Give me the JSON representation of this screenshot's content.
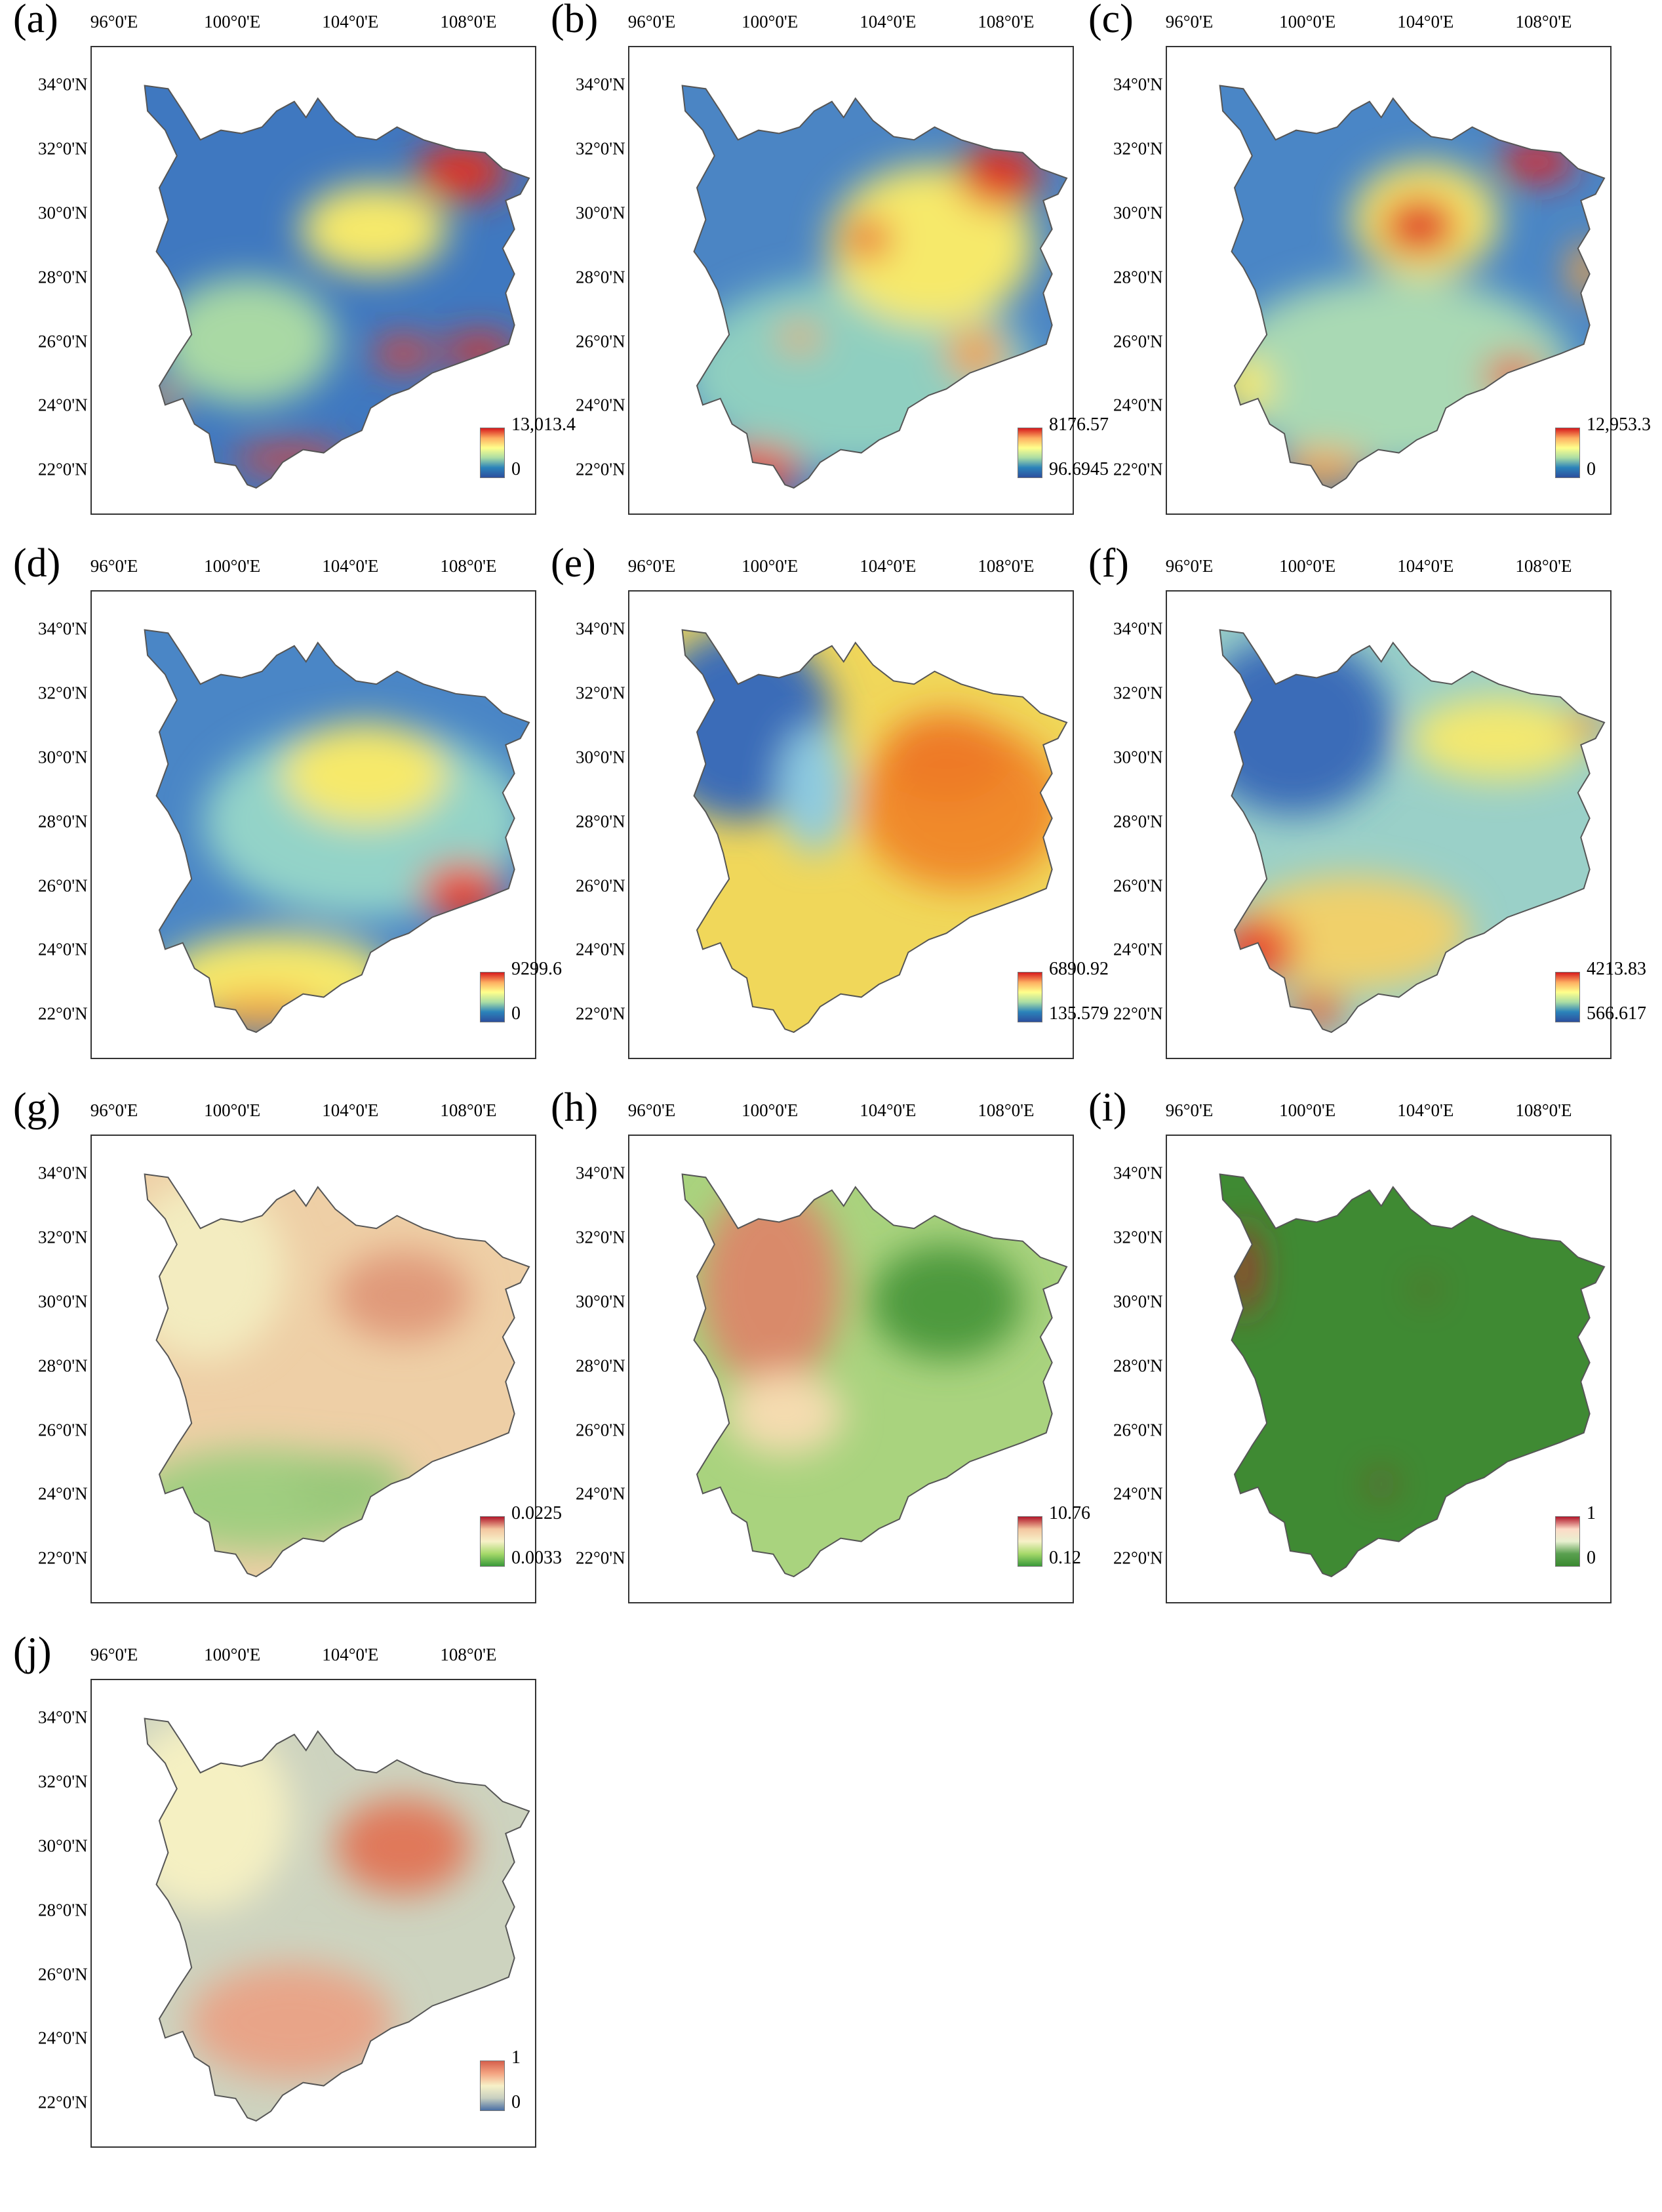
{
  "axes": {
    "x_ticks": [
      "96°0'E",
      "100°0'E",
      "104°0'E",
      "108°0'E"
    ],
    "y_ticks": [
      "34°0'N",
      "32°0'N",
      "30°0'N",
      "28°0'N",
      "26°0'N",
      "24°0'N",
      "22°0'N"
    ]
  },
  "colormaps": {
    "spectral": [
      "#d7191c",
      "#fdae61",
      "#ffff8c",
      "#abdda4",
      "#2b83ba",
      "#2c4f9e"
    ],
    "red_green": [
      "#b2182b",
      "#f4c7a1",
      "#f7f1c8",
      "#a6d96a",
      "#3a9a3a"
    ],
    "binary": [
      "#b2182b",
      "#fddbc7",
      "#e8f0d0",
      "#5aa050",
      "#3a8a30"
    ],
    "red_blue": [
      "#d6604d",
      "#f4a582",
      "#f7f1c8",
      "#c8d0c0",
      "#4a6fa5"
    ]
  },
  "panels": [
    {
      "id": "a",
      "label": "(a)",
      "legend_max": "13,013.4",
      "legend_min": "0",
      "cmap": "spectral",
      "base": "#3f78c0",
      "blobs": [
        {
          "c": "#e03020",
          "lon": 107.8,
          "lat": 31.3,
          "rx": 1.6,
          "ry": 0.9
        },
        {
          "c": "#e8402a",
          "lon": 105.8,
          "lat": 25.6,
          "rx": 1.0,
          "ry": 0.5
        },
        {
          "c": "#e03020",
          "lon": 108.4,
          "lat": 25.7,
          "rx": 1.3,
          "ry": 0.5
        },
        {
          "c": "#e8402a",
          "lon": 102.0,
          "lat": 22.3,
          "rx": 2.0,
          "ry": 0.4
        },
        {
          "c": "#f3a040",
          "lon": 97.5,
          "lat": 24.1,
          "rx": 0.6,
          "ry": 0.5
        },
        {
          "c": "#f6e96a",
          "lon": 104.8,
          "lat": 29.5,
          "rx": 2.5,
          "ry": 1.4
        },
        {
          "c": "#a9d9a4",
          "lon": 100.5,
          "lat": 26.0,
          "rx": 3.0,
          "ry": 2.0
        }
      ]
    },
    {
      "id": "b",
      "label": "(b)",
      "legend_max": "8176.57",
      "legend_min": "96.6945",
      "cmap": "spectral",
      "base": "#4b85c4",
      "blobs": [
        {
          "c": "#8fcfc0",
          "lon": 103.0,
          "lat": 25.0,
          "rx": 6.0,
          "ry": 3.0
        },
        {
          "c": "#f6e96a",
          "lon": 105.5,
          "lat": 29.0,
          "rx": 3.5,
          "ry": 2.5
        },
        {
          "c": "#e03020",
          "lon": 107.8,
          "lat": 31.2,
          "rx": 1.4,
          "ry": 1.0
        },
        {
          "c": "#e8402a",
          "lon": 103.3,
          "lat": 29.2,
          "rx": 0.8,
          "ry": 0.6
        },
        {
          "c": "#f3a040",
          "lon": 107.0,
          "lat": 25.6,
          "rx": 1.0,
          "ry": 0.8
        },
        {
          "c": "#f3a040",
          "lon": 101.0,
          "lat": 26.1,
          "rx": 0.7,
          "ry": 0.4
        },
        {
          "c": "#e8402a",
          "lon": 99.5,
          "lat": 22.0,
          "rx": 1.6,
          "ry": 0.7
        }
      ]
    },
    {
      "id": "c",
      "label": "(c)",
      "legend_max": "12,953.3",
      "legend_min": "0",
      "cmap": "spectral",
      "base": "#4a86c6",
      "blobs": [
        {
          "c": "#a9d9b4",
          "lon": 103.0,
          "lat": 25.0,
          "rx": 6.0,
          "ry": 3.0
        },
        {
          "c": "#f6e96a",
          "lon": 104.0,
          "lat": 29.8,
          "rx": 2.5,
          "ry": 1.8
        },
        {
          "c": "#e02020",
          "lon": 103.8,
          "lat": 29.6,
          "rx": 1.3,
          "ry": 0.9
        },
        {
          "c": "#e02020",
          "lon": 107.8,
          "lat": 31.6,
          "rx": 1.3,
          "ry": 0.6
        },
        {
          "c": "#e8502a",
          "lon": 107.0,
          "lat": 24.9,
          "rx": 1.0,
          "ry": 0.6
        },
        {
          "c": "#f3a040",
          "lon": 109.5,
          "lat": 28.2,
          "rx": 0.6,
          "ry": 0.9
        },
        {
          "c": "#f6e96a",
          "lon": 97.8,
          "lat": 24.6,
          "rx": 1.0,
          "ry": 0.9
        },
        {
          "c": "#f3a040",
          "lon": 100.5,
          "lat": 22.0,
          "rx": 1.5,
          "ry": 0.6
        }
      ]
    },
    {
      "id": "d",
      "label": "(d)",
      "legend_max": "9299.6",
      "legend_min": "0",
      "cmap": "spectral",
      "base": "#4a86c6",
      "blobs": [
        {
          "c": "#93d3c8",
          "lon": 104.5,
          "lat": 28.0,
          "rx": 5.5,
          "ry": 3.0
        },
        {
          "c": "#f6e96a",
          "lon": 104.5,
          "lat": 29.5,
          "rx": 2.8,
          "ry": 1.6
        },
        {
          "c": "#f6e96a",
          "lon": 101.5,
          "lat": 23.0,
          "rx": 4.0,
          "ry": 1.5
        },
        {
          "c": "#e8402a",
          "lon": 107.8,
          "lat": 25.8,
          "rx": 1.4,
          "ry": 0.9
        },
        {
          "c": "#f3a040",
          "lon": 101.0,
          "lat": 22.0,
          "rx": 2.0,
          "ry": 0.6
        }
      ]
    },
    {
      "id": "e",
      "label": "(e)",
      "legend_max": "6890.92",
      "legend_min": "135.579",
      "cmap": "spectral",
      "base": "#f0d75a",
      "blobs": [
        {
          "c": "#3a6cb8",
          "lon": 99.0,
          "lat": 31.0,
          "rx": 3.2,
          "ry": 3.0
        },
        {
          "c": "#8ecbe0",
          "lon": 101.5,
          "lat": 29.0,
          "rx": 1.2,
          "ry": 2.0
        },
        {
          "c": "#f08a2a",
          "lon": 106.5,
          "lat": 28.5,
          "rx": 3.5,
          "ry": 2.6
        },
        {
          "c": "#ee7a25",
          "lon": 106.0,
          "lat": 30.0,
          "rx": 2.2,
          "ry": 1.4
        }
      ]
    },
    {
      "id": "f",
      "label": "(f)",
      "legend_max": "4213.83",
      "legend_min": "566.617",
      "cmap": "spectral",
      "base": "#9ad0c8",
      "blobs": [
        {
          "c": "#3a6cb8",
          "lon": 99.5,
          "lat": 31.0,
          "rx": 3.4,
          "ry": 2.8
        },
        {
          "c": "#f3e870",
          "lon": 106.5,
          "lat": 30.6,
          "rx": 3.0,
          "ry": 1.3
        },
        {
          "c": "#f0d06a",
          "lon": 101.5,
          "lat": 24.5,
          "rx": 4.0,
          "ry": 1.8
        },
        {
          "c": "#e8402a",
          "lon": 98.3,
          "lat": 24.0,
          "rx": 1.3,
          "ry": 1.0
        },
        {
          "c": "#e8502a",
          "lon": 100.3,
          "lat": 22.1,
          "rx": 1.0,
          "ry": 0.5
        },
        {
          "c": "#f08a2a",
          "lon": 109.5,
          "lat": 31.0,
          "rx": 0.7,
          "ry": 0.4
        }
      ]
    },
    {
      "id": "g",
      "label": "(g)",
      "legend_max": "0.0225",
      "legend_min": "0.0033",
      "cmap": "red_green",
      "base": "#eecfa6",
      "blobs": [
        {
          "c": "#f3ecc0",
          "lon": 99.0,
          "lat": 31.0,
          "rx": 2.8,
          "ry": 2.8
        },
        {
          "c": "#e09a7a",
          "lon": 105.8,
          "lat": 30.2,
          "rx": 2.3,
          "ry": 1.4
        },
        {
          "c": "#a0ce80",
          "lon": 101.0,
          "lat": 23.8,
          "rx": 4.5,
          "ry": 1.6
        },
        {
          "c": "#9ac87a",
          "lon": 104.0,
          "lat": 24.2,
          "rx": 2.0,
          "ry": 1.0
        }
      ]
    },
    {
      "id": "h",
      "label": "(h)",
      "legend_max": "10.76",
      "legend_min": "0.12",
      "cmap": "red_green",
      "base": "#a9d37e",
      "blobs": [
        {
          "c": "#d98a6a",
          "lon": 100.0,
          "lat": 30.5,
          "rx": 2.4,
          "ry": 3.2
        },
        {
          "c": "#f5dcb0",
          "lon": 100.5,
          "lat": 26.5,
          "rx": 2.0,
          "ry": 1.3
        },
        {
          "c": "#4e9a3e",
          "lon": 106.0,
          "lat": 30.0,
          "rx": 2.6,
          "ry": 1.8
        }
      ]
    },
    {
      "id": "i",
      "label": "(i)",
      "legend_max": "1",
      "legend_min": "0",
      "cmap": "binary",
      "base": "#3f8a33",
      "blobs": [
        {
          "c": "#b8262a",
          "lon": 97.8,
          "lat": 31.0,
          "rx": 0.45,
          "ry": 1.4
        },
        {
          "c": "#b8262a",
          "lon": 102.5,
          "lat": 24.3,
          "rx": 0.25,
          "ry": 0.3
        },
        {
          "c": "#b8262a",
          "lon": 104.0,
          "lat": 30.4,
          "rx": 0.2,
          "ry": 0.2
        }
      ]
    },
    {
      "id": "j",
      "label": "(j)",
      "legend_max": "1",
      "legend_min": "0",
      "cmap": "red_blue",
      "base": "#cdd3bf",
      "blobs": [
        {
          "c": "#f5f0c2",
          "lon": 99.0,
          "lat": 31.0,
          "rx": 3.0,
          "ry": 3.0
        },
        {
          "c": "#e0785a",
          "lon": 105.8,
          "lat": 30.0,
          "rx": 2.3,
          "ry": 1.5
        },
        {
          "c": "#e8a488",
          "lon": 102.0,
          "lat": 24.5,
          "rx": 3.5,
          "ry": 1.8
        }
      ]
    }
  ]
}
